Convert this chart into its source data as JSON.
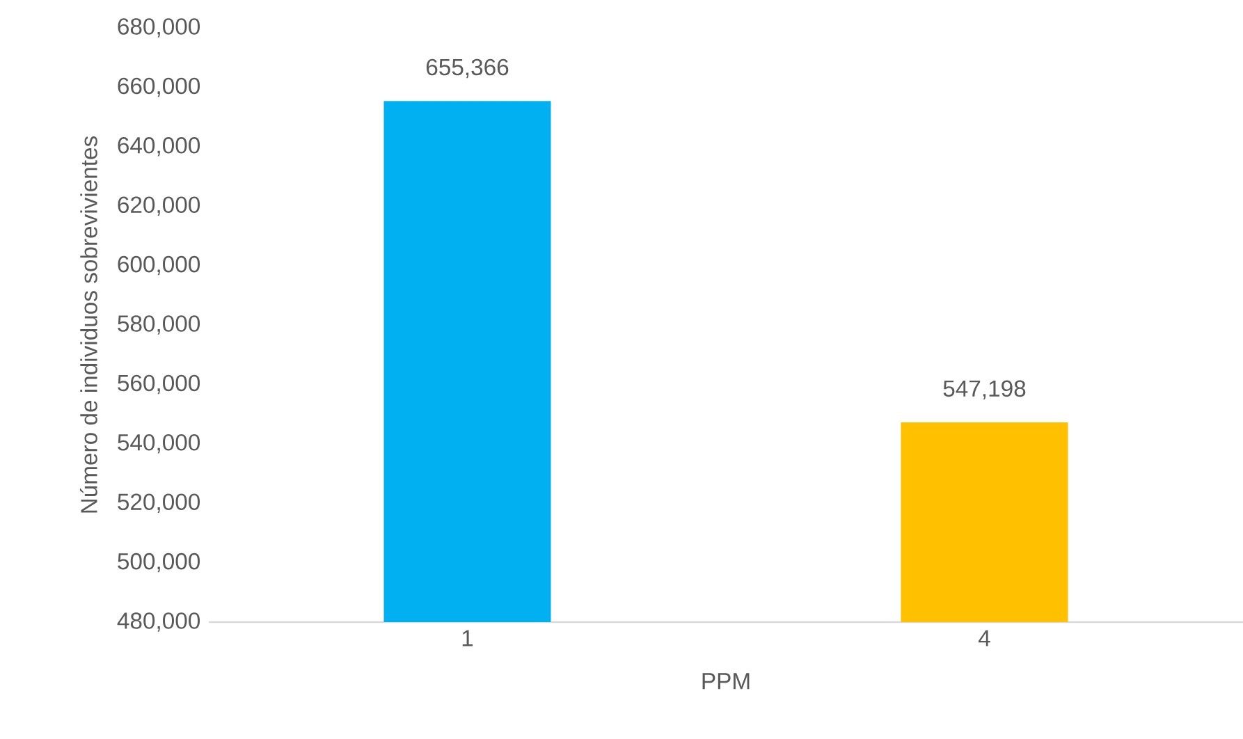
{
  "chart_data": {
    "type": "bar",
    "xlabel": "PPM",
    "ylabel": "Número de individuos sobrevivientes",
    "categories": [
      "1",
      "4"
    ],
    "values": [
      655366,
      547198
    ],
    "colors": [
      "#00b0f0",
      "#ffc000"
    ],
    "value_labels": [
      "655,366",
      "547,198"
    ],
    "ylim": [
      480000,
      680000
    ],
    "yticks": [
      {
        "value": 480000,
        "label": "480,000"
      },
      {
        "value": 500000,
        "label": "500,000"
      },
      {
        "value": 520000,
        "label": "520,000"
      },
      {
        "value": 540000,
        "label": "540,000"
      },
      {
        "value": 560000,
        "label": "560,000"
      },
      {
        "value": 580000,
        "label": "580,000"
      },
      {
        "value": 600000,
        "label": "600,000"
      },
      {
        "value": 620000,
        "label": "620,000"
      },
      {
        "value": 640000,
        "label": "640,000"
      },
      {
        "value": 660000,
        "label": "660,000"
      },
      {
        "value": 680000,
        "label": "680,000"
      }
    ]
  }
}
